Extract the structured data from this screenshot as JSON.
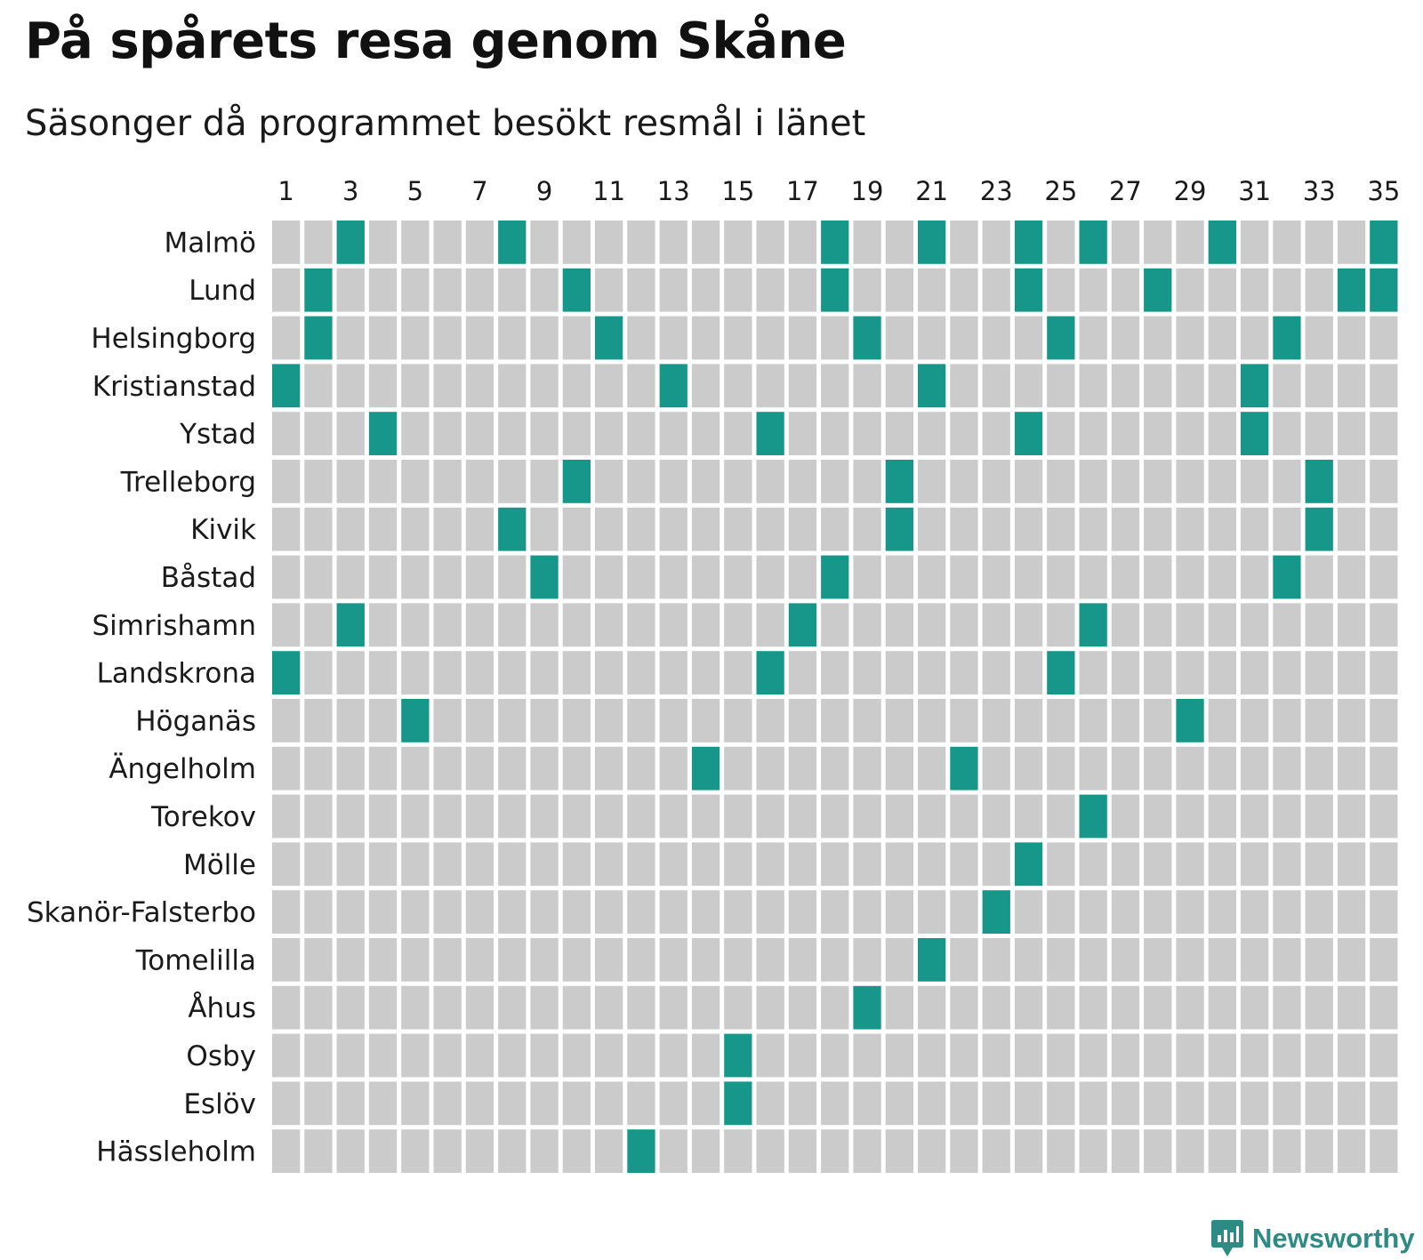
{
  "colors": {
    "visited": "#16978a",
    "empty": "#cbcbcb",
    "brand": "#2e8b84"
  },
  "footer": {
    "brand_name": "Newsworthy",
    "icon": "newsworthy-logo-icon"
  },
  "chart_data": {
    "type": "heatmap",
    "title": "På spårets resa genom Skåne",
    "subtitle": "Säsonger då programmet besökt resmål i länet",
    "x": [
      1,
      2,
      3,
      4,
      5,
      6,
      7,
      8,
      9,
      10,
      11,
      12,
      13,
      14,
      15,
      16,
      17,
      18,
      19,
      20,
      21,
      22,
      23,
      24,
      25,
      26,
      27,
      28,
      29,
      30,
      31,
      32,
      33,
      34,
      35
    ],
    "x_tick_labels": [
      "1",
      "3",
      "5",
      "7",
      "9",
      "11",
      "13",
      "15",
      "17",
      "19",
      "21",
      "23",
      "25",
      "27",
      "29",
      "31",
      "33",
      "35"
    ],
    "rows": [
      {
        "name": "Malmö",
        "seasons": [
          3,
          8,
          18,
          21,
          24,
          26,
          30,
          35
        ]
      },
      {
        "name": "Lund",
        "seasons": [
          2,
          10,
          18,
          24,
          28,
          34,
          35
        ]
      },
      {
        "name": "Helsingborg",
        "seasons": [
          2,
          11,
          19,
          25,
          32
        ]
      },
      {
        "name": "Kristianstad",
        "seasons": [
          1,
          13,
          21,
          31
        ]
      },
      {
        "name": "Ystad",
        "seasons": [
          4,
          16,
          24,
          31
        ]
      },
      {
        "name": "Trelleborg",
        "seasons": [
          10,
          20,
          33
        ]
      },
      {
        "name": "Kivik",
        "seasons": [
          8,
          20,
          33
        ]
      },
      {
        "name": "Båstad",
        "seasons": [
          9,
          18,
          32
        ]
      },
      {
        "name": "Simrishamn",
        "seasons": [
          3,
          17,
          26
        ]
      },
      {
        "name": "Landskrona",
        "seasons": [
          1,
          16,
          25
        ]
      },
      {
        "name": "Höganäs",
        "seasons": [
          5,
          29
        ]
      },
      {
        "name": "Ängelholm",
        "seasons": [
          14,
          22
        ]
      },
      {
        "name": "Torekov",
        "seasons": [
          26
        ]
      },
      {
        "name": "Mölle",
        "seasons": [
          24
        ]
      },
      {
        "name": "Skanör-Falsterbo",
        "seasons": [
          23
        ]
      },
      {
        "name": "Tomelilla",
        "seasons": [
          21
        ]
      },
      {
        "name": "Åhus",
        "seasons": [
          19
        ]
      },
      {
        "name": "Osby",
        "seasons": [
          15
        ]
      },
      {
        "name": "Eslöv",
        "seasons": [
          15
        ]
      },
      {
        "name": "Hässleholm",
        "seasons": [
          12
        ]
      }
    ]
  }
}
